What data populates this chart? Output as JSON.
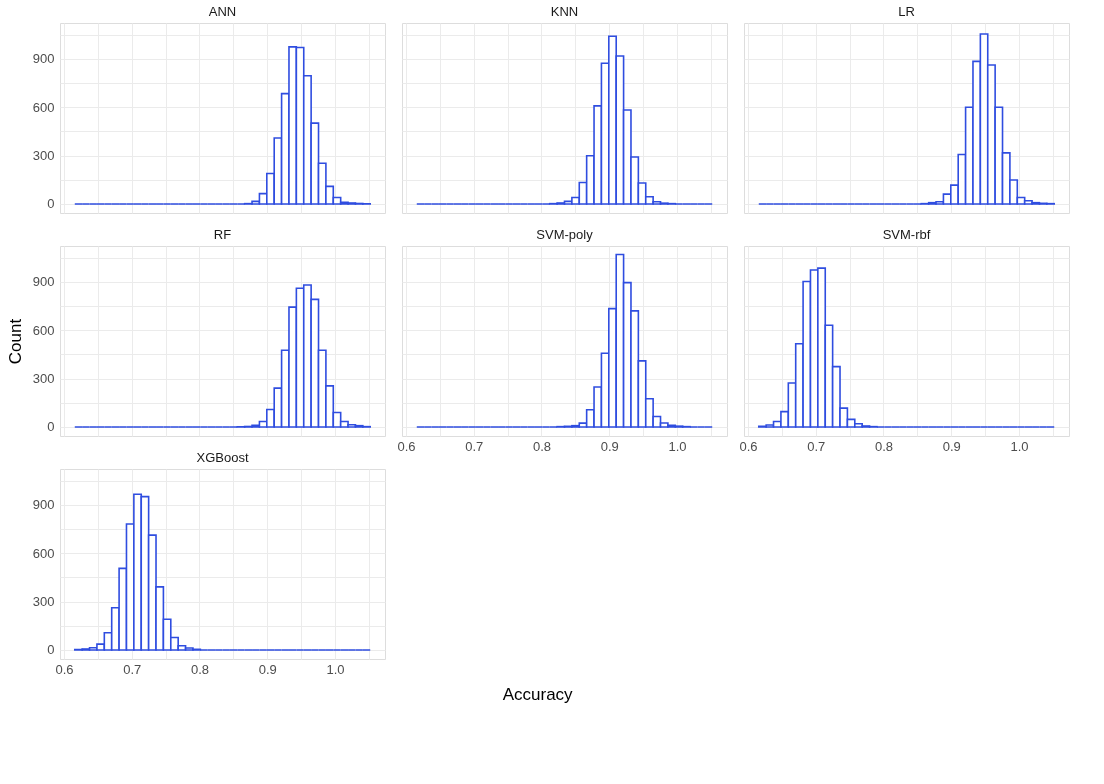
{
  "chart_data": [
    {
      "type": "histogram",
      "title": "ANN",
      "color": "#2f4de0",
      "tick_labels": "y",
      "grid": true,
      "bins": [
        0.616,
        0.6269,
        0.6378,
        0.6487,
        0.6596,
        0.6705,
        0.6814,
        0.6923,
        0.7032,
        0.7141,
        0.725,
        0.7359,
        0.7468,
        0.7577,
        0.7686,
        0.7795,
        0.7904,
        0.8013,
        0.8122,
        0.8231,
        0.834,
        0.8449,
        0.8558,
        0.8667,
        0.8776,
        0.8885,
        0.8994,
        0.9103,
        0.9212,
        0.9321,
        0.943,
        0.9539,
        0.9648,
        0.9757,
        0.9866,
        0.9975,
        1.0084,
        1.0193,
        1.0302,
        1.0411,
        1.052
      ],
      "values": [
        0,
        0,
        0,
        0,
        0,
        0,
        0,
        0,
        0,
        0,
        0,
        0,
        0,
        0,
        0,
        0,
        0,
        0,
        0,
        0,
        0,
        0,
        0,
        2,
        16,
        64,
        189,
        409,
        684,
        974,
        970,
        795,
        501,
        252,
        109,
        40,
        10,
        6,
        3,
        1
      ],
      "xlim": [
        0.5942,
        1.0738
      ],
      "ylim": [
        -56,
        1122
      ],
      "xticks": [
        {
          "value": 0.6,
          "label": null
        },
        {
          "value": 0.65,
          "label": null
        },
        {
          "value": 0.7,
          "label": null
        },
        {
          "value": 0.75,
          "label": null
        },
        {
          "value": 0.8,
          "label": null
        },
        {
          "value": 0.85,
          "label": null
        },
        {
          "value": 0.9,
          "label": null
        },
        {
          "value": 0.95,
          "label": null
        },
        {
          "value": 1.0,
          "label": null
        },
        {
          "value": 1.05,
          "label": null
        }
      ],
      "yticks": [
        0,
        {
          "value": 150,
          "label": null
        },
        300,
        {
          "value": 450,
          "label": null
        },
        600,
        {
          "value": 750,
          "label": null
        },
        900,
        {
          "value": 1050,
          "label": null
        }
      ]
    },
    {
      "type": "histogram",
      "title": "KNN",
      "color": "#2f4de0",
      "tick_labels": false,
      "grid": true,
      "bins": [
        0.616,
        0.6269,
        0.6378,
        0.6487,
        0.6596,
        0.6705,
        0.6814,
        0.6923,
        0.7032,
        0.7141,
        0.725,
        0.7359,
        0.7468,
        0.7577,
        0.7686,
        0.7795,
        0.7904,
        0.8013,
        0.8122,
        0.8231,
        0.834,
        0.8449,
        0.8558,
        0.8667,
        0.8776,
        0.8885,
        0.8994,
        0.9103,
        0.9212,
        0.9321,
        0.943,
        0.9539,
        0.9648,
        0.9757,
        0.9866,
        0.9975,
        1.0084,
        1.0193,
        1.0302,
        1.0411,
        1.052
      ],
      "values": [
        0,
        0,
        0,
        0,
        0,
        0,
        0,
        0,
        0,
        0,
        0,
        0,
        0,
        0,
        0,
        0,
        0,
        0,
        2,
        6,
        16,
        40,
        133,
        299,
        608,
        872,
        1040,
        917,
        583,
        291,
        130,
        45,
        14,
        5,
        2,
        0,
        0,
        0,
        0,
        0
      ],
      "xlim": [
        0.5942,
        1.0738
      ],
      "ylim": [
        -56,
        1122
      ],
      "xticks": [
        {
          "value": 0.6,
          "label": null
        },
        {
          "value": 0.65,
          "label": null
        },
        {
          "value": 0.7,
          "label": null
        },
        {
          "value": 0.75,
          "label": null
        },
        {
          "value": 0.8,
          "label": null
        },
        {
          "value": 0.85,
          "label": null
        },
        {
          "value": 0.9,
          "label": null
        },
        {
          "value": 0.95,
          "label": null
        },
        {
          "value": 1.0,
          "label": null
        },
        {
          "value": 1.05,
          "label": null
        }
      ],
      "yticks": [
        {
          "value": 0,
          "label": null
        },
        {
          "value": 150,
          "label": null
        },
        {
          "value": 300,
          "label": null
        },
        {
          "value": 450,
          "label": null
        },
        {
          "value": 600,
          "label": null
        },
        {
          "value": 750,
          "label": null
        },
        {
          "value": 900,
          "label": null
        },
        {
          "value": 1050,
          "label": null
        }
      ]
    },
    {
      "type": "histogram",
      "title": "LR",
      "color": "#2f4de0",
      "tick_labels": false,
      "grid": true,
      "bins": [
        0.616,
        0.6269,
        0.6378,
        0.6487,
        0.6596,
        0.6705,
        0.6814,
        0.6923,
        0.7032,
        0.7141,
        0.725,
        0.7359,
        0.7468,
        0.7577,
        0.7686,
        0.7795,
        0.7904,
        0.8013,
        0.8122,
        0.8231,
        0.834,
        0.8449,
        0.8558,
        0.8667,
        0.8776,
        0.8885,
        0.8994,
        0.9103,
        0.9212,
        0.9321,
        0.943,
        0.9539,
        0.9648,
        0.9757,
        0.9866,
        0.9975,
        1.0084,
        1.0193,
        1.0302,
        1.0411,
        1.052
      ],
      "values": [
        0,
        0,
        0,
        0,
        0,
        0,
        0,
        0,
        0,
        0,
        0,
        0,
        0,
        0,
        0,
        0,
        0,
        0,
        0,
        0,
        0,
        0,
        2,
        8,
        14,
        61,
        117,
        307,
        600,
        884,
        1054,
        862,
        600,
        317,
        149,
        40,
        20,
        8,
        4,
        2
      ],
      "xlim": [
        0.5942,
        1.0738
      ],
      "ylim": [
        -56,
        1122
      ],
      "xticks": [
        {
          "value": 0.6,
          "label": null
        },
        {
          "value": 0.65,
          "label": null
        },
        {
          "value": 0.7,
          "label": null
        },
        {
          "value": 0.75,
          "label": null
        },
        {
          "value": 0.8,
          "label": null
        },
        {
          "value": 0.85,
          "label": null
        },
        {
          "value": 0.9,
          "label": null
        },
        {
          "value": 0.95,
          "label": null
        },
        {
          "value": 1.0,
          "label": null
        },
        {
          "value": 1.05,
          "label": null
        }
      ],
      "yticks": [
        {
          "value": 0,
          "label": null
        },
        {
          "value": 150,
          "label": null
        },
        {
          "value": 300,
          "label": null
        },
        {
          "value": 450,
          "label": null
        },
        {
          "value": 600,
          "label": null
        },
        {
          "value": 750,
          "label": null
        },
        {
          "value": 900,
          "label": null
        },
        {
          "value": 1050,
          "label": null
        }
      ]
    },
    {
      "type": "histogram",
      "title": "RF",
      "ylabel": "Count",
      "color": "#2f4de0",
      "tick_labels": "y",
      "grid": true,
      "bins": [
        0.616,
        0.6269,
        0.6378,
        0.6487,
        0.6596,
        0.6705,
        0.6814,
        0.6923,
        0.7032,
        0.7141,
        0.725,
        0.7359,
        0.7468,
        0.7577,
        0.7686,
        0.7795,
        0.7904,
        0.8013,
        0.8122,
        0.8231,
        0.834,
        0.8449,
        0.8558,
        0.8667,
        0.8776,
        0.8885,
        0.8994,
        0.9103,
        0.9212,
        0.9321,
        0.943,
        0.9539,
        0.9648,
        0.9757,
        0.9866,
        0.9975,
        1.0084,
        1.0193,
        1.0302,
        1.0411,
        1.052
      ],
      "values": [
        0,
        0,
        0,
        0,
        0,
        0,
        0,
        0,
        0,
        0,
        0,
        0,
        0,
        0,
        0,
        0,
        0,
        0,
        0,
        0,
        0,
        0,
        1,
        3,
        10,
        34,
        108,
        241,
        476,
        743,
        860,
        880,
        791,
        476,
        255,
        90,
        34,
        14,
        8,
        2
      ],
      "xlim": [
        0.5942,
        1.0738
      ],
      "ylim": [
        -56,
        1122
      ],
      "xticks": [
        {
          "value": 0.6,
          "label": null
        },
        {
          "value": 0.65,
          "label": null
        },
        {
          "value": 0.7,
          "label": null
        },
        {
          "value": 0.75,
          "label": null
        },
        {
          "value": 0.8,
          "label": null
        },
        {
          "value": 0.85,
          "label": null
        },
        {
          "value": 0.9,
          "label": null
        },
        {
          "value": 0.95,
          "label": null
        },
        {
          "value": 1.0,
          "label": null
        },
        {
          "value": 1.05,
          "label": null
        }
      ],
      "yticks": [
        0,
        {
          "value": 150,
          "label": null
        },
        300,
        {
          "value": 450,
          "label": null
        },
        600,
        {
          "value": 750,
          "label": null
        },
        900,
        {
          "value": 1050,
          "label": null
        }
      ]
    },
    {
      "type": "histogram",
      "title": "SVM-poly",
      "xlabel": "Accuracy",
      "color": "#2f4de0",
      "tick_labels": "x",
      "grid": true,
      "bins": [
        0.616,
        0.6269,
        0.6378,
        0.6487,
        0.6596,
        0.6705,
        0.6814,
        0.6923,
        0.7032,
        0.7141,
        0.725,
        0.7359,
        0.7468,
        0.7577,
        0.7686,
        0.7795,
        0.7904,
        0.8013,
        0.8122,
        0.8231,
        0.834,
        0.8449,
        0.8558,
        0.8667,
        0.8776,
        0.8885,
        0.8994,
        0.9103,
        0.9212,
        0.9321,
        0.943,
        0.9539,
        0.9648,
        0.9757,
        0.9866,
        0.9975,
        1.0084,
        1.0193,
        1.0302,
        1.0411,
        1.052
      ],
      "values": [
        0,
        0,
        0,
        0,
        0,
        0,
        0,
        0,
        0,
        0,
        0,
        0,
        0,
        0,
        0,
        0,
        0,
        0,
        0,
        2,
        4,
        8,
        24,
        107,
        248,
        457,
        734,
        1069,
        895,
        720,
        410,
        175,
        65,
        25,
        10,
        5,
        2,
        0,
        0,
        0
      ],
      "xlim": [
        0.5942,
        1.0738
      ],
      "ylim": [
        -56,
        1122
      ],
      "xticks": [
        {
          "value": 0.6,
          "label": "0.6"
        },
        {
          "value": 0.65,
          "label": null
        },
        {
          "value": 0.7,
          "label": "0.7"
        },
        {
          "value": 0.75,
          "label": null
        },
        {
          "value": 0.8,
          "label": "0.8"
        },
        {
          "value": 0.85,
          "label": null
        },
        {
          "value": 0.9,
          "label": "0.9"
        },
        {
          "value": 0.95,
          "label": null
        },
        {
          "value": 1.0,
          "label": "1.0"
        },
        {
          "value": 1.05,
          "label": null
        }
      ],
      "yticks": [
        {
          "value": 0,
          "label": null
        },
        {
          "value": 150,
          "label": null
        },
        {
          "value": 300,
          "label": null
        },
        {
          "value": 450,
          "label": null
        },
        {
          "value": 600,
          "label": null
        },
        {
          "value": 750,
          "label": null
        },
        {
          "value": 900,
          "label": null
        },
        {
          "value": 1050,
          "label": null
        }
      ]
    },
    {
      "type": "histogram",
      "title": "SVM-rbf",
      "color": "#2f4de0",
      "tick_labels": "x",
      "grid": true,
      "bins": [
        0.616,
        0.6269,
        0.6378,
        0.6487,
        0.6596,
        0.6705,
        0.6814,
        0.6923,
        0.7032,
        0.7141,
        0.725,
        0.7359,
        0.7468,
        0.7577,
        0.7686,
        0.7795,
        0.7904,
        0.8013,
        0.8122,
        0.8231,
        0.834,
        0.8449,
        0.8558,
        0.8667,
        0.8776,
        0.8885,
        0.8994,
        0.9103,
        0.9212,
        0.9321,
        0.943,
        0.9539,
        0.9648,
        0.9757,
        0.9866,
        0.9975,
        1.0084,
        1.0193,
        1.0302,
        1.0411,
        1.052
      ],
      "values": [
        4,
        12,
        34,
        95,
        273,
        516,
        902,
        973,
        985,
        631,
        374,
        117,
        47,
        20,
        6,
        2,
        0,
        0,
        0,
        0,
        0,
        0,
        0,
        0,
        0,
        0,
        0,
        0,
        0,
        0,
        0,
        0,
        0,
        0,
        0,
        0,
        0,
        0,
        0,
        0
      ],
      "xlim": [
        0.5942,
        1.0738
      ],
      "ylim": [
        -56,
        1122
      ],
      "xticks": [
        {
          "value": 0.6,
          "label": "0.6"
        },
        {
          "value": 0.65,
          "label": null
        },
        {
          "value": 0.7,
          "label": "0.7"
        },
        {
          "value": 0.75,
          "label": null
        },
        {
          "value": 0.8,
          "label": "0.8"
        },
        {
          "value": 0.85,
          "label": null
        },
        {
          "value": 0.9,
          "label": "0.9"
        },
        {
          "value": 0.95,
          "label": null
        },
        {
          "value": 1.0,
          "label": "1.0"
        },
        {
          "value": 1.05,
          "label": null
        }
      ],
      "yticks": [
        {
          "value": 0,
          "label": null
        },
        {
          "value": 150,
          "label": null
        },
        {
          "value": 300,
          "label": null
        },
        {
          "value": 450,
          "label": null
        },
        {
          "value": 600,
          "label": null
        },
        {
          "value": 750,
          "label": null
        },
        {
          "value": 900,
          "label": null
        },
        {
          "value": 1050,
          "label": null
        }
      ]
    },
    {
      "type": "histogram",
      "title": "XGBoost",
      "color": "#2f4de0",
      "grid": true,
      "bins": [
        0.616,
        0.6269,
        0.6378,
        0.6487,
        0.6596,
        0.6705,
        0.6814,
        0.6923,
        0.7032,
        0.7141,
        0.725,
        0.7359,
        0.7468,
        0.7577,
        0.7686,
        0.7795,
        0.7904,
        0.8013,
        0.8122,
        0.8231,
        0.834,
        0.8449,
        0.8558,
        0.8667,
        0.8776,
        0.8885,
        0.8994,
        0.9103,
        0.9212,
        0.9321,
        0.943,
        0.9539,
        0.9648,
        0.9757,
        0.9866,
        0.9975,
        1.0084,
        1.0193,
        1.0302,
        1.0411,
        1.052
      ],
      "values": [
        2,
        6,
        14,
        36,
        107,
        262,
        506,
        781,
        965,
        951,
        712,
        391,
        190,
        77,
        26,
        12,
        4,
        0,
        0,
        0,
        0,
        0,
        0,
        0,
        0,
        0,
        0,
        0,
        0,
        0,
        0,
        0,
        0,
        0,
        0,
        0,
        0,
        0,
        0,
        0
      ],
      "xlim": [
        0.5942,
        1.0738
      ],
      "ylim": [
        -56,
        1122
      ],
      "xticks": [
        {
          "value": 0.6,
          "label": "0.6"
        },
        {
          "value": 0.65,
          "label": null
        },
        {
          "value": 0.7,
          "label": "0.7"
        },
        {
          "value": 0.75,
          "label": null
        },
        {
          "value": 0.8,
          "label": "0.8"
        },
        {
          "value": 0.85,
          "label": null
        },
        {
          "value": 0.9,
          "label": "0.9"
        },
        {
          "value": 0.95,
          "label": null
        },
        {
          "value": 1.0,
          "label": "1.0"
        },
        {
          "value": 1.05,
          "label": null
        }
      ],
      "yticks": [
        0,
        {
          "value": 150,
          "label": null
        },
        300,
        {
          "value": 450,
          "label": null
        },
        600,
        {
          "value": 750,
          "label": null
        },
        900,
        {
          "value": 1050,
          "label": null
        }
      ]
    }
  ]
}
